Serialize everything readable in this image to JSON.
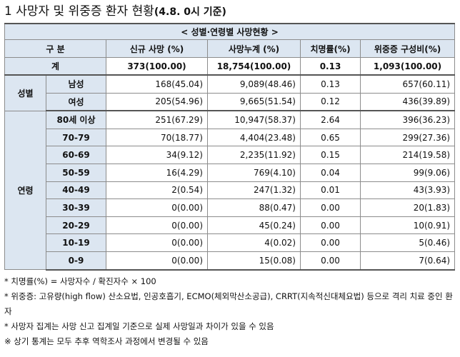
{
  "heading": {
    "title": "1  사망자 및 위중증 환자 현황",
    "date": "(4.8. 0시 기준)"
  },
  "table": {
    "caption": "< 성별·연령별 사망현황 >",
    "headers": [
      "구 분",
      "신규 사망      (%)",
      "사망누계      (%)",
      "치명률(%)",
      "위중증   구성비(%)"
    ],
    "total": {
      "label": "계",
      "new_deaths": "373(100.00)",
      "cumulative": "18,754(100.00)",
      "fatality": "0.13",
      "severe": "1,093(100.00)"
    },
    "sex_label": "성별",
    "sex": [
      {
        "label": "남성",
        "new_deaths": "168(45.04)",
        "cumulative": "9,089(48.46)",
        "fatality": "0.13",
        "severe": "657(60.11)"
      },
      {
        "label": "여성",
        "new_deaths": "205(54.96)",
        "cumulative": "9,665(51.54)",
        "fatality": "0.12",
        "severe": "436(39.89)"
      }
    ],
    "age_label": "연령",
    "age": [
      {
        "label": "80세 이상",
        "new_deaths": "251(67.29)",
        "cumulative": "10,947(58.37)",
        "fatality": "2.64",
        "severe": "396(36.23)"
      },
      {
        "label": "70-79",
        "new_deaths": "70(18.77)",
        "cumulative": "4,404(23.48)",
        "fatality": "0.65",
        "severe": "299(27.36)"
      },
      {
        "label": "60-69",
        "new_deaths": "34(9.12)",
        "cumulative": "2,235(11.92)",
        "fatality": "0.15",
        "severe": "214(19.58)"
      },
      {
        "label": "50-59",
        "new_deaths": "16(4.29)",
        "cumulative": "769(4.10)",
        "fatality": "0.04",
        "severe": "99(9.06)"
      },
      {
        "label": "40-49",
        "new_deaths": "2(0.54)",
        "cumulative": "247(1.32)",
        "fatality": "0.01",
        "severe": "43(3.93)"
      },
      {
        "label": "30-39",
        "new_deaths": "0(0.00)",
        "cumulative": "88(0.47)",
        "fatality": "0.00",
        "severe": "20(1.83)"
      },
      {
        "label": "20-29",
        "new_deaths": "0(0.00)",
        "cumulative": "45(0.24)",
        "fatality": "0.00",
        "severe": "10(0.91)"
      },
      {
        "label": "10-19",
        "new_deaths": "0(0.00)",
        "cumulative": "4(0.02)",
        "fatality": "0.00",
        "severe": "5(0.46)"
      },
      {
        "label": "0-9",
        "new_deaths": "0(0.00)",
        "cumulative": "15(0.08)",
        "fatality": "0.00",
        "severe": "7(0.64)"
      }
    ]
  },
  "notes": [
    "* 치명률(%) = 사망자수 / 확진자수 × 100",
    "* 위중증: 고유량(high flow) 산소요법, 인공호흡기, ECMO(체외막산소공급), CRRT(지속적신대체요법) 등으로 격리 치료 중인 환자",
    "* 사망자 집계는 사망 신고 집계일 기준으로 실제 사망일과 차이가 있을 수 있음",
    "※ 상기 통계는 모두 추후 역학조사 과정에서 변경될 수 있음"
  ]
}
